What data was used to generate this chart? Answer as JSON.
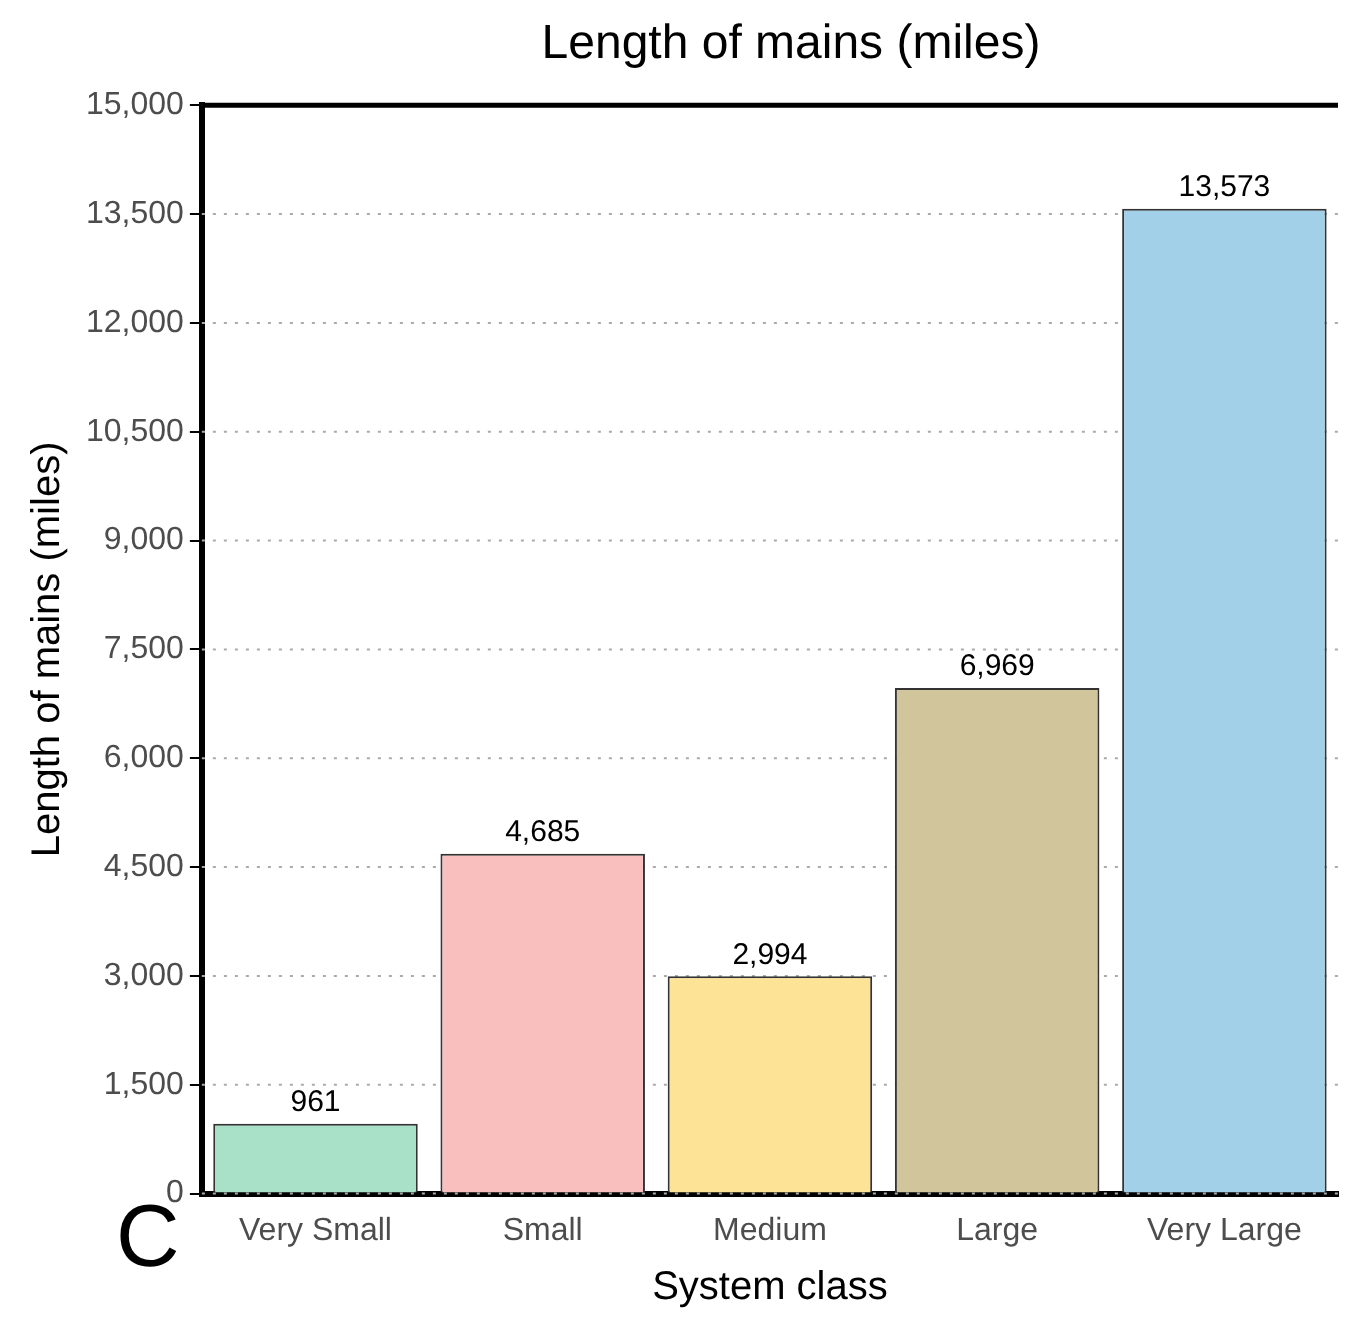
{
  "chart_data": {
    "type": "bar",
    "title": "Length of mains (miles)",
    "xlabel": "System class",
    "ylabel": "Length of mains (miles)",
    "categories": [
      "Very Small",
      "Small",
      "Medium",
      "Large",
      "Very Large"
    ],
    "values": [
      961,
      4685,
      2994,
      6969,
      13573
    ],
    "colors": [
      "#a8e0c8",
      "#f9bfbf",
      "#fde396",
      "#d1c59c",
      "#a2d0e8"
    ],
    "value_labels": [
      "961",
      "4,685",
      "2,994",
      "6,969",
      "13,573"
    ],
    "ylim": [
      0,
      15000
    ],
    "yticks": [
      0,
      {
        "value": 1500,
        "label": "1,500"
      },
      {
        "value": 3000,
        "label": "3,000"
      },
      {
        "value": 4500,
        "label": "4,500"
      },
      {
        "value": 6000,
        "label": "6,000"
      },
      {
        "value": 7500,
        "label": "7,500"
      },
      {
        "value": 9000,
        "label": "9,000"
      },
      {
        "value": 10500,
        "label": "10,500"
      },
      {
        "value": 12000,
        "label": "12,000"
      },
      {
        "value": 13500,
        "label": "13,500"
      },
      {
        "value": 15000,
        "label": "15,000"
      }
    ],
    "grid": "y",
    "legend": false,
    "annotations": [
      "C"
    ]
  }
}
